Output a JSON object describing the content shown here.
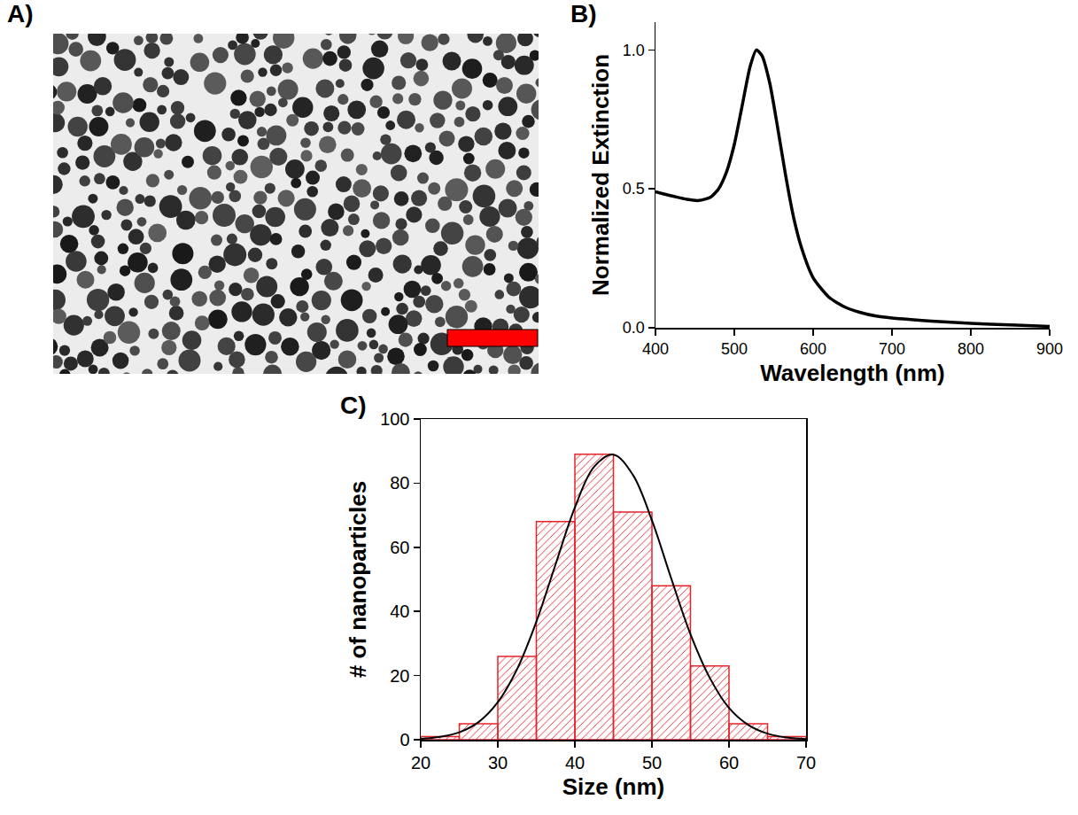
{
  "chart_data": [
    {
      "type": "image",
      "title": "A)",
      "color": "#ff0000"
    },
    {
      "type": "line",
      "title": "B)",
      "xlabel": "Wavelength (nm)",
      "ylabel": "Normalized Extinction",
      "x": [
        400,
        420,
        440,
        455,
        470,
        480,
        490,
        500,
        510,
        520,
        528,
        535,
        545,
        555,
        565,
        575,
        585,
        600,
        620,
        640,
        660,
        680,
        700,
        750,
        800,
        850,
        900
      ],
      "values": [
        0.49,
        0.475,
        0.462,
        0.458,
        0.47,
        0.5,
        0.56,
        0.66,
        0.8,
        0.94,
        1.0,
        0.98,
        0.88,
        0.72,
        0.55,
        0.4,
        0.29,
        0.18,
        0.11,
        0.075,
        0.055,
        0.042,
        0.035,
        0.024,
        0.016,
        0.01,
        0.005
      ],
      "color": "#000000",
      "xlim": [
        400,
        900
      ],
      "xticks": [
        400,
        500,
        600,
        700,
        800,
        900
      ],
      "ylim": [
        0,
        1.1
      ],
      "yticks": [
        {
          "value": 0,
          "label": "0.0"
        },
        {
          "value": 0.5,
          "label": "0.5"
        },
        {
          "value": 1,
          "label": "1.0"
        }
      ],
      "grid": false
    },
    {
      "type": "histogram",
      "title": "C)",
      "xlabel": "Size (nm)",
      "ylabel": "# of nanoparticles",
      "bins": [
        20,
        25,
        30,
        35,
        40,
        45,
        50,
        55,
        60,
        65,
        70
      ],
      "values": [
        1,
        5,
        26,
        68,
        89,
        71,
        48,
        23,
        5,
        1
      ],
      "color": "#e3242b",
      "series": [
        {
          "type": "line",
          "color": "#000000",
          "x": [
            20,
            22.5,
            25,
            27.5,
            30,
            32.5,
            35,
            37.5,
            40,
            42.5,
            45,
            47.5,
            50,
            52.5,
            55,
            57.5,
            60,
            62.5,
            65,
            67.5,
            70
          ],
          "values": [
            0.29,
            0.88,
            2.3,
            5.5,
            11.7,
            22,
            36.8,
            54.7,
            72.4,
            85.1,
            88.9,
            82.7,
            68.4,
            50.3,
            32.9,
            19.3,
            9.9,
            4.6,
            1.9,
            0.68,
            0.22
          ]
        }
      ],
      "xlim": [
        20,
        70
      ],
      "xticks": [
        20,
        30,
        40,
        50,
        60,
        70
      ],
      "ylim": [
        0,
        100
      ],
      "yticks": [
        0,
        20,
        40,
        60,
        80,
        100
      ],
      "grid": false
    }
  ]
}
